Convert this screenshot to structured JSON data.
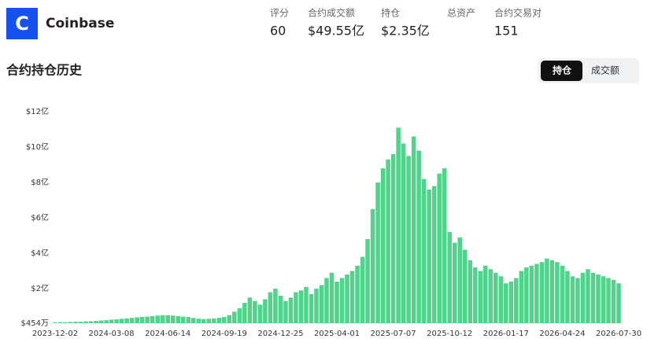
{
  "header": {
    "logo": "C",
    "name": "Coinbase",
    "stats": [
      {
        "label": "评分",
        "value": "60"
      },
      {
        "label": "合约成交额",
        "value": "$49.55亿"
      },
      {
        "label": "持仓",
        "value": "$2.35亿"
      },
      {
        "label": "总资产"
      },
      {
        "label": "合约交易对",
        "value": "151"
      }
    ]
  },
  "section": {
    "title": "合约持仓历史",
    "options": [
      "持仓",
      "成交额"
    ],
    "active": 0
  },
  "chart_data": {
    "type": "bar",
    "color": "#50d48b",
    "categories": [
      "2023-12-02",
      null,
      null,
      null,
      null,
      null,
      null,
      null,
      null,
      null,
      null,
      "2024-03-08",
      null,
      null,
      null,
      null,
      null,
      null,
      null,
      null,
      null,
      null,
      "2024-06-14",
      null,
      null,
      null,
      null,
      null,
      null,
      null,
      null,
      null,
      null,
      "2024-09-19",
      null,
      null,
      null,
      null,
      null,
      null,
      null,
      null,
      null,
      null,
      "2024-12-25",
      null,
      null,
      null,
      null,
      null,
      null,
      null,
      null,
      null,
      null,
      "2025-04-01",
      null,
      null,
      null,
      null,
      null,
      null,
      null,
      null,
      null,
      null,
      "2025-07-07",
      null,
      null,
      null,
      null,
      null,
      null,
      null,
      null,
      null,
      null,
      "2025-10-12",
      null,
      null,
      null,
      null,
      null,
      null,
      null,
      null,
      null,
      null,
      "2026-01-17",
      null,
      null,
      null,
      null,
      null,
      null,
      null,
      null,
      null,
      null,
      "2026-04-24",
      null,
      null,
      null,
      null,
      null,
      null,
      null,
      null,
      null,
      null,
      "2026-07-30"
    ],
    "values": [
      0.1,
      0.11,
      0.1,
      0.12,
      0.13,
      0.13,
      0.15,
      0.16,
      0.18,
      0.2,
      0.22,
      0.25,
      0.27,
      0.3,
      0.32,
      0.35,
      0.38,
      0.4,
      0.42,
      0.45,
      0.48,
      0.5,
      0.5,
      0.48,
      0.45,
      0.42,
      0.4,
      0.35,
      0.3,
      0.28,
      0.3,
      0.32,
      0.35,
      0.4,
      0.5,
      0.7,
      0.9,
      1.2,
      1.5,
      1.3,
      1.1,
      1.4,
      1.8,
      2.0,
      1.6,
      1.3,
      1.5,
      1.8,
      1.9,
      2.1,
      1.7,
      2.0,
      2.2,
      2.6,
      2.9,
      2.4,
      2.6,
      2.8,
      3.0,
      3.3,
      3.8,
      4.8,
      6.5,
      8.0,
      8.8,
      9.3,
      9.6,
      11.1,
      10.2,
      9.5,
      10.6,
      9.8,
      8.2,
      7.6,
      7.8,
      8.5,
      8.8,
      5.2,
      4.6,
      4.9,
      4.2,
      3.6,
      3.2,
      3.0,
      3.3,
      3.1,
      2.9,
      2.7,
      2.3,
      2.4,
      2.6,
      3.0,
      3.2,
      3.3,
      3.4,
      3.5,
      3.7,
      3.6,
      3.5,
      3.3,
      3.0,
      2.7,
      2.6,
      2.9,
      3.1,
      2.9,
      2.8,
      2.7,
      2.6,
      2.5,
      2.3
    ],
    "ylim": [
      0.0454,
      12
    ],
    "yticks": [
      {
        "value": 0.0454,
        "label": "$454万"
      },
      {
        "value": 2,
        "label": "$2亿"
      },
      {
        "value": 4,
        "label": "$4亿"
      },
      {
        "value": 6,
        "label": "$6亿"
      },
      {
        "value": 8,
        "label": "$8亿"
      },
      {
        "value": 10,
        "label": "$10亿"
      },
      {
        "value": 12,
        "label": "$12亿"
      }
    ],
    "grid": false
  }
}
